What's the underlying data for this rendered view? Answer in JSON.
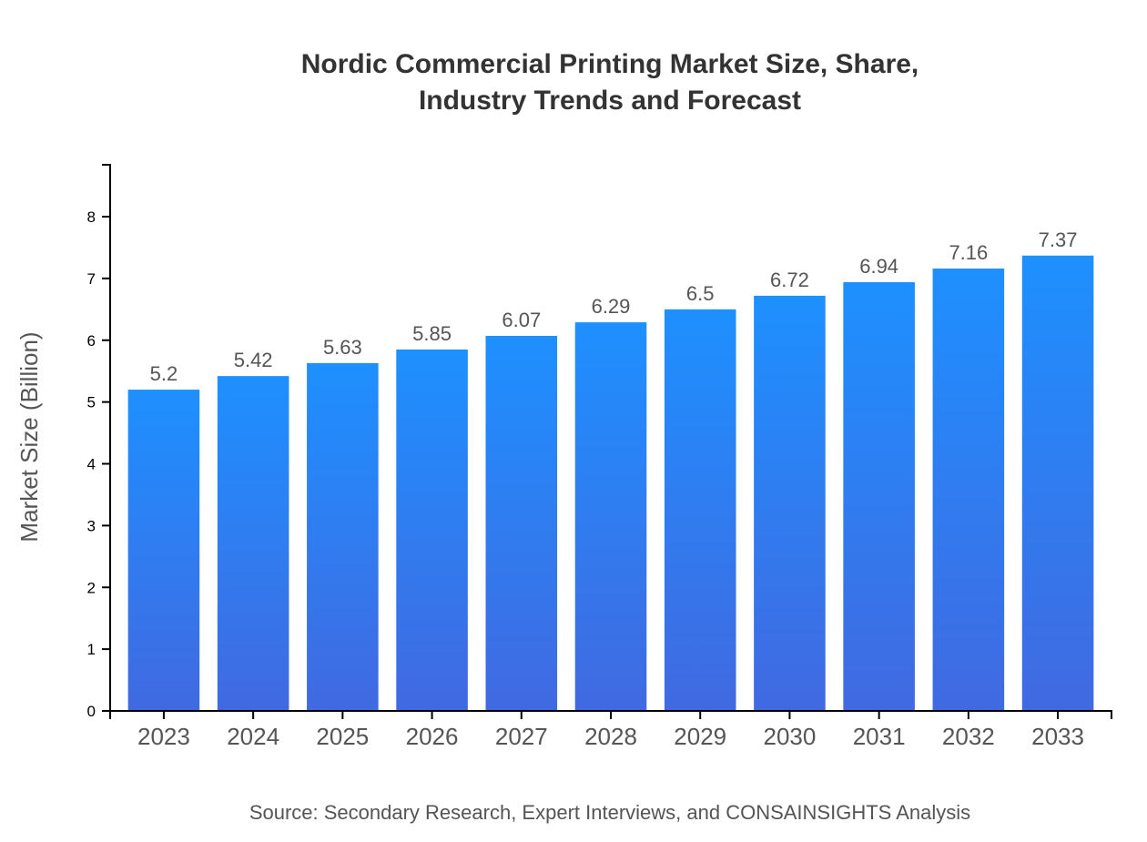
{
  "chart_data": {
    "type": "bar",
    "title_lines": [
      "Nordic Commercial Printing Market Size, Share,",
      "Industry Trends and Forecast"
    ],
    "categories": [
      "2023",
      "2024",
      "2025",
      "2026",
      "2027",
      "2028",
      "2029",
      "2030",
      "2031",
      "2032",
      "2033"
    ],
    "values": [
      5.2,
      5.42,
      5.63,
      5.85,
      6.07,
      6.29,
      6.5,
      6.72,
      6.94,
      7.16,
      7.37
    ],
    "data_labels": [
      "5.2",
      "5.42",
      "5.63",
      "5.85",
      "6.07",
      "6.29",
      "6.5",
      "6.72",
      "6.94",
      "7.16",
      "7.37"
    ],
    "xlabel": "",
    "ylabel": "Market Size (Billion)",
    "ylim": [
      0,
      8.84
    ],
    "yticks": [
      0,
      1,
      2,
      3,
      4,
      5,
      6,
      7,
      8
    ],
    "grid": false,
    "legend": "none",
    "bar_gradient": {
      "top": "#1e90ff",
      "bottom": "#4169e1"
    },
    "source": "Source: Secondary Research, Expert Interviews, and CONSAINSIGHTS Analysis"
  }
}
